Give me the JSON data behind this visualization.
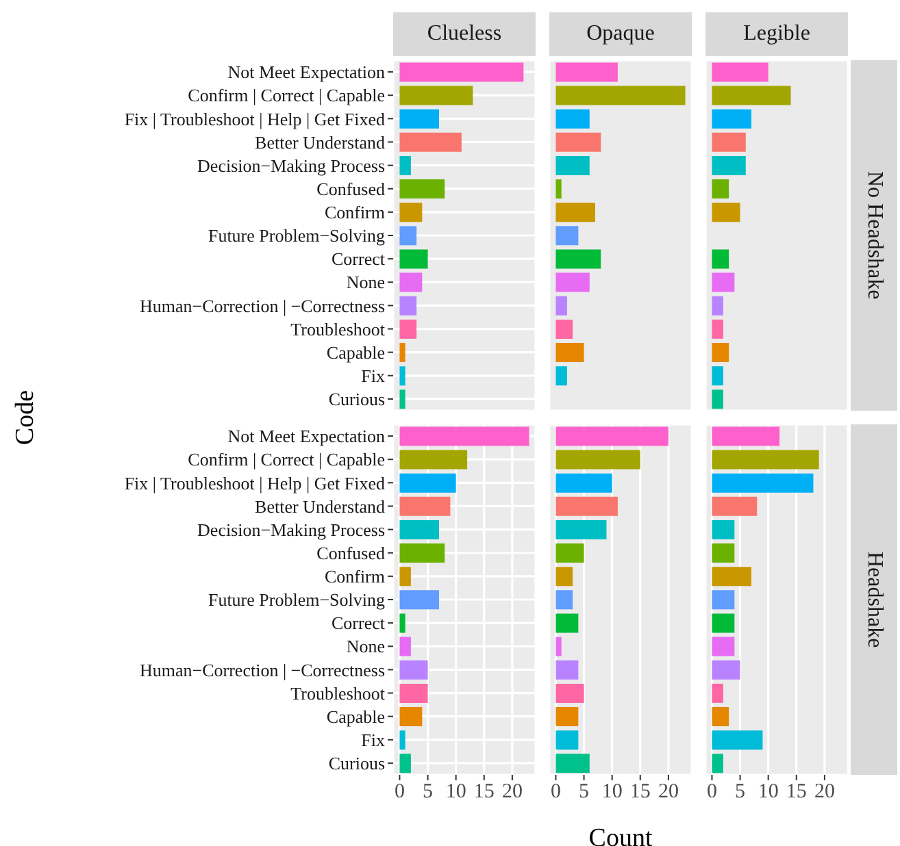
{
  "chart_data": [
    {
      "type": "bar",
      "orientation": "horizontal",
      "title": "Clueless",
      "ylabel": "Code",
      "tick_labels": "y",
      "grid": true,
      "xlim": [
        -1.15,
        24.15
      ],
      "xticks": [
        0,
        5,
        10,
        15,
        20
      ],
      "categories": [
        "Not Meet Expectation",
        "Confirm | Correct | Capable",
        "Fix | Troubleshoot | Help | Get Fixed",
        "Better Understand",
        "Decision−Making Process",
        "Confused",
        "Confirm",
        "Future Problem−Solving",
        "Correct",
        "None",
        "Human−Correction | −Correctness",
        "Troubleshoot",
        "Capable",
        "Fix",
        "Curious"
      ],
      "values": [
        22,
        13,
        7,
        11,
        2,
        8,
        4,
        3,
        5,
        4,
        3,
        3,
        1,
        1,
        1
      ],
      "colors": [
        "#ff61cc",
        "#a3a500",
        "#00b0f6",
        "#f8766d",
        "#00bfc4",
        "#6bb100",
        "#c99800",
        "#619cff",
        "#00ba38",
        "#e76bf3",
        "#b983ff",
        "#ff67a4",
        "#e58700",
        "#00bcd8",
        "#00c08b"
      ]
    },
    {
      "type": "bar",
      "orientation": "horizontal",
      "title": "Opaque",
      "tick_labels": false,
      "grid": true,
      "xlim": [
        -1.15,
        24.15
      ],
      "xticks": [
        0,
        5,
        10,
        15,
        20
      ],
      "values": [
        11,
        23,
        6,
        8,
        6,
        1,
        7,
        4,
        8,
        6,
        2,
        3,
        5,
        2,
        null
      ],
      "colors": [
        "#ff61cc",
        "#a3a500",
        "#00b0f6",
        "#f8766d",
        "#00bfc4",
        "#6bb100",
        "#c99800",
        "#619cff",
        "#00ba38",
        "#e76bf3",
        "#b983ff",
        "#ff67a4",
        "#e58700",
        "#00bcd8",
        "#00c08b"
      ]
    },
    {
      "type": "bar",
      "orientation": "horizontal",
      "title": "Legible",
      "y2label": "No Headshake",
      "tick_labels": false,
      "grid": true,
      "xlim": [
        -1.15,
        24.15
      ],
      "xticks": [
        0,
        5,
        10,
        15,
        20
      ],
      "values": [
        10,
        14,
        7,
        6,
        6,
        3,
        5,
        null,
        3,
        4,
        2,
        2,
        3,
        2,
        2
      ],
      "colors": [
        "#ff61cc",
        "#a3a500",
        "#00b0f6",
        "#f8766d",
        "#00bfc4",
        "#6bb100",
        "#c99800",
        "#619cff",
        "#00ba38",
        "#e76bf3",
        "#b983ff",
        "#ff67a4",
        "#e58700",
        "#00bcd8",
        "#00c08b"
      ]
    },
    {
      "type": "bar",
      "orientation": "horizontal",
      "grid": true,
      "xlim": [
        -1.15,
        24.15
      ],
      "xticks": [
        0,
        5,
        10,
        15,
        20
      ],
      "categories": [
        "Not Meet Expectation",
        "Confirm | Correct | Capable",
        "Fix | Troubleshoot | Help | Get Fixed",
        "Better Understand",
        "Decision−Making Process",
        "Confused",
        "Confirm",
        "Future Problem−Solving",
        "Correct",
        "None",
        "Human−Correction | −Correctness",
        "Troubleshoot",
        "Capable",
        "Fix",
        "Curious"
      ],
      "values": [
        23,
        12,
        10,
        9,
        7,
        8,
        2,
        7,
        1,
        2,
        5,
        5,
        4,
        1,
        2
      ],
      "colors": [
        "#ff61cc",
        "#a3a500",
        "#00b0f6",
        "#f8766d",
        "#00bfc4",
        "#6bb100",
        "#c99800",
        "#619cff",
        "#00ba38",
        "#e76bf3",
        "#b983ff",
        "#ff67a4",
        "#e58700",
        "#00bcd8",
        "#00c08b"
      ]
    },
    {
      "type": "bar",
      "orientation": "horizontal",
      "xlabel": "Count",
      "tick_labels": "x",
      "grid": true,
      "xlim": [
        -1.15,
        24.15
      ],
      "xticks": [
        0,
        5,
        10,
        15,
        20
      ],
      "values": [
        20,
        15,
        10,
        11,
        9,
        5,
        3,
        3,
        4,
        1,
        4,
        5,
        4,
        4,
        6
      ],
      "colors": [
        "#ff61cc",
        "#a3a500",
        "#00b0f6",
        "#f8766d",
        "#00bfc4",
        "#6bb100",
        "#c99800",
        "#619cff",
        "#00ba38",
        "#e76bf3",
        "#b983ff",
        "#ff67a4",
        "#e58700",
        "#00bcd8",
        "#00c08b"
      ]
    },
    {
      "type": "bar",
      "orientation": "horizontal",
      "y2label": "Headshake",
      "tick_labels": "x",
      "grid": true,
      "xlim": [
        -1.15,
        24.15
      ],
      "xticks": [
        0,
        5,
        10,
        15,
        20
      ],
      "values": [
        12,
        19,
        18,
        8,
        4,
        4,
        7,
        4,
        4,
        4,
        5,
        2,
        3,
        9,
        2
      ],
      "colors": [
        "#ff61cc",
        "#a3a500",
        "#00b0f6",
        "#f8766d",
        "#00bfc4",
        "#6bb100",
        "#c99800",
        "#619cff",
        "#00ba38",
        "#e76bf3",
        "#b983ff",
        "#ff67a4",
        "#e58700",
        "#00bcd8",
        "#00c08b"
      ]
    }
  ]
}
